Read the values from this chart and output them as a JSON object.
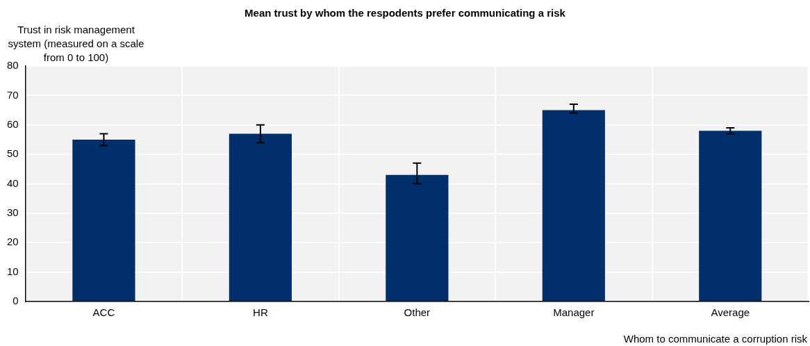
{
  "chart_data": {
    "type": "bar",
    "title": "Mean trust by whom the respodents prefer communicating a risk",
    "ylabel": "Trust in risk management system (measured on a scale from 0 to 100)",
    "xlabel": "Whom to communicate a corruption risk",
    "categories": [
      "ACC",
      "HR",
      "Other",
      "Manager",
      "Average"
    ],
    "values": [
      55,
      57,
      43,
      65,
      58
    ],
    "errors": [
      [
        53,
        57
      ],
      [
        54,
        60
      ],
      [
        40,
        47
      ],
      [
        64,
        67
      ],
      [
        57,
        59
      ]
    ],
    "color": "#002f6c",
    "ylim": [
      0,
      80
    ],
    "yticks": [
      0,
      10,
      20,
      30,
      40,
      50,
      60,
      70,
      80
    ],
    "grid": true,
    "legend": false
  }
}
